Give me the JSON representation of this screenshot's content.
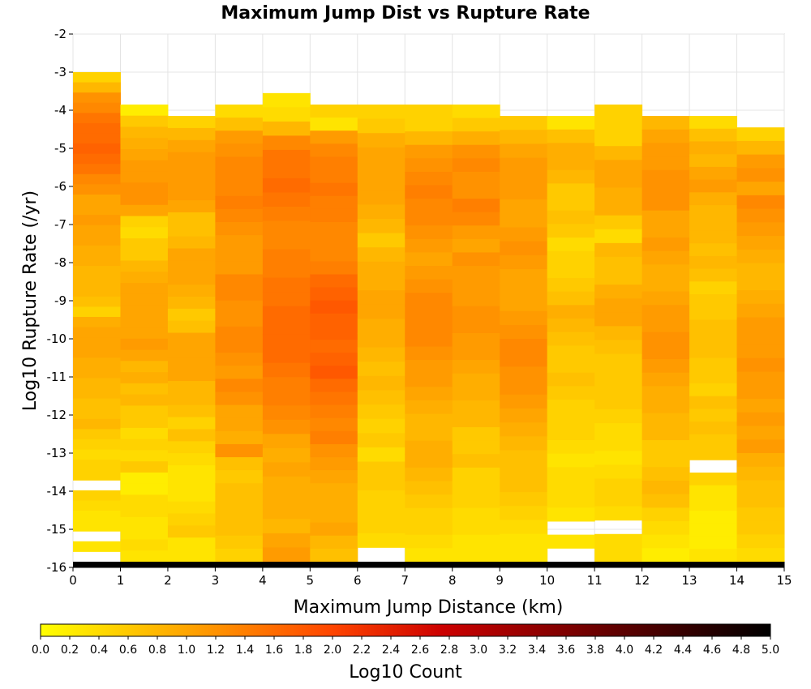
{
  "chart_data": {
    "type": "heatmap",
    "title": "Maximum Jump Dist vs Rupture Rate",
    "xlabel": "Maximum Jump Distance (km)",
    "ylabel": "Log10 Rupture Rate (/yr)",
    "colorbar_label": "Log10 Count",
    "xlim": [
      0,
      15
    ],
    "ylim": [
      -16,
      -2
    ],
    "x_ticks": [
      "0",
      "1",
      "2",
      "3",
      "4",
      "5",
      "6",
      "7",
      "8",
      "9",
      "10",
      "11",
      "12",
      "13",
      "14",
      "15"
    ],
    "y_ticks": [
      "-2",
      "-3",
      "-4",
      "-5",
      "-6",
      "-7",
      "-8",
      "-9",
      "-10",
      "-11",
      "-12",
      "-13",
      "-14",
      "-15",
      "-16"
    ],
    "color_range": [
      0.0,
      5.0
    ],
    "colorbar_ticks": [
      "0.0",
      "0.2",
      "0.4",
      "0.6",
      "0.8",
      "1.0",
      "1.2",
      "1.4",
      "1.6",
      "1.8",
      "2.0",
      "2.2",
      "2.4",
      "2.6",
      "2.8",
      "3.0",
      "3.2",
      "3.4",
      "3.6",
      "3.8",
      "4.0",
      "4.2",
      "4.4",
      "4.6",
      "4.8",
      "5.0"
    ],
    "colormap": [
      "#ffff00",
      "#ffa500",
      "#ff4500",
      "#cc0000",
      "#000000"
    ],
    "grid": true,
    "x_bins": [
      0,
      1,
      2,
      3,
      4,
      5,
      6,
      7,
      8,
      9,
      10,
      11,
      12,
      13,
      14
    ],
    "bin_width_x": 1,
    "bin_height_y": 0.285,
    "columns": [
      {
        "x": 0,
        "top": -3.0,
        "cells": [
          0.5,
          0.8,
          1.2,
          1.3,
          1.5,
          1.6,
          1.6,
          1.7,
          1.6,
          1.5,
          1.3,
          1.2,
          1.0,
          1.0,
          1.1,
          1.0,
          1.0,
          0.9,
          0.9,
          0.8,
          0.8,
          0.8,
          0.7,
          0.5,
          0.9,
          1.0,
          1.0,
          1.0,
          0.9,
          0.9,
          0.8,
          0.8,
          0.7,
          0.7,
          0.8,
          0.6,
          0.5,
          0.4,
          0.5,
          0.5,
          null,
          0.5,
          0.4,
          0.3,
          0.3,
          null,
          0.3,
          null,
          5.0
        ]
      },
      {
        "x": 1,
        "top": -3.85,
        "cells": [
          0.2,
          0.6,
          0.8,
          0.9,
          1.0,
          1.1,
          1.1,
          1.2,
          1.2,
          1.0,
          0.5,
          0.4,
          0.6,
          0.6,
          0.8,
          0.9,
          1.0,
          1.0,
          1.0,
          1.0,
          1.0,
          1.1,
          1.0,
          0.8,
          0.9,
          0.7,
          0.8,
          0.6,
          0.6,
          0.4,
          0.5,
          0.4,
          0.6,
          0.2,
          0.2,
          0.4,
          0.4,
          0.3,
          0.3,
          0.4,
          0.3,
          5.0
        ]
      },
      {
        "x": 2,
        "top": -4.15,
        "cells": [
          0.5,
          0.8,
          1.0,
          1.1,
          1.1,
          1.1,
          1.1,
          1.0,
          0.7,
          0.7,
          0.8,
          1.0,
          1.0,
          1.0,
          0.9,
          0.8,
          0.6,
          0.7,
          1.0,
          1.0,
          1.0,
          1.0,
          0.8,
          0.8,
          0.7,
          0.5,
          0.7,
          0.5,
          0.4,
          0.3,
          0.3,
          0.3,
          0.4,
          0.5,
          0.6,
          0.3,
          0.3,
          5.0
        ]
      },
      {
        "x": 3,
        "top": -3.85,
        "cells": [
          0.4,
          0.7,
          1.1,
          1.2,
          1.3,
          1.3,
          1.3,
          1.4,
          1.3,
          1.2,
          1.1,
          1.1,
          1.1,
          1.3,
          1.3,
          1.2,
          1.2,
          1.3,
          1.3,
          1.2,
          1.1,
          1.3,
          1.2,
          1.0,
          1.0,
          0.9,
          1.2,
          0.7,
          0.6,
          0.7,
          0.7,
          0.7,
          0.7,
          0.6,
          0.5,
          5.0
        ]
      },
      {
        "x": 4,
        "top": -3.55,
        "cells": [
          0.3,
          0.4,
          0.8,
          1.3,
          1.5,
          1.5,
          1.6,
          1.5,
          1.4,
          1.3,
          1.3,
          1.4,
          1.4,
          1.5,
          1.5,
          1.6,
          1.6,
          1.6,
          1.6,
          1.5,
          1.4,
          1.4,
          1.3,
          1.2,
          1.0,
          0.9,
          1.0,
          0.9,
          0.9,
          0.9,
          0.8,
          1.0,
          1.1,
          5.0
        ]
      },
      {
        "x": 5,
        "top": -3.85,
        "cells": [
          0.5,
          0.3,
          1.1,
          1.3,
          1.4,
          1.4,
          1.5,
          1.4,
          1.4,
          1.3,
          1.3,
          1.3,
          1.4,
          1.6,
          1.7,
          1.8,
          1.7,
          1.7,
          1.6,
          1.7,
          1.8,
          1.6,
          1.5,
          1.4,
          1.3,
          1.4,
          1.2,
          1.1,
          1.0,
          0.9,
          0.9,
          0.9,
          1.0,
          0.8,
          0.7,
          5.0
        ]
      },
      {
        "x": 6,
        "top": -3.85,
        "cells": [
          0.5,
          0.6,
          0.9,
          1.0,
          1.0,
          1.0,
          1.0,
          0.9,
          0.8,
          0.6,
          0.8,
          0.9,
          0.9,
          1.0,
          1.0,
          0.9,
          0.9,
          0.8,
          0.7,
          0.8,
          0.7,
          0.6,
          0.5,
          0.6,
          0.4,
          0.6,
          0.6,
          0.5,
          0.5,
          0.5,
          0.4,
          null,
          5.0
        ]
      },
      {
        "x": 7,
        "top": -3.85,
        "cells": [
          0.5,
          0.5,
          0.8,
          1.1,
          1.2,
          1.3,
          1.4,
          1.3,
          1.3,
          1.2,
          1.1,
          1.0,
          1.1,
          1.2,
          1.3,
          1.3,
          1.3,
          1.3,
          1.2,
          1.1,
          1.1,
          1.0,
          0.9,
          0.8,
          0.8,
          0.9,
          0.9,
          0.8,
          0.7,
          0.6,
          0.5,
          0.5,
          0.4,
          0.3,
          5.0
        ]
      },
      {
        "x": 8,
        "top": -3.85,
        "cells": [
          0.4,
          0.6,
          0.9,
          1.2,
          1.3,
          1.2,
          1.2,
          1.4,
          1.3,
          1.1,
          1.0,
          1.2,
          1.1,
          1.1,
          1.1,
          1.2,
          1.2,
          1.1,
          1.1,
          1.0,
          0.9,
          0.9,
          0.8,
          0.8,
          0.6,
          0.6,
          0.7,
          0.5,
          0.5,
          0.5,
          0.4,
          0.4,
          0.3,
          0.3,
          5.0
        ]
      },
      {
        "x": 9,
        "top": -4.15,
        "cells": [
          0.6,
          0.8,
          1.0,
          1.1,
          1.1,
          1.1,
          1.0,
          1.0,
          1.1,
          1.2,
          1.1,
          1.0,
          1.0,
          1.0,
          1.1,
          1.2,
          1.3,
          1.3,
          1.2,
          1.2,
          1.1,
          1.0,
          0.9,
          0.8,
          0.7,
          0.7,
          0.7,
          0.6,
          0.5,
          0.4,
          0.3,
          0.3,
          5.0
        ]
      },
      {
        "x": 10,
        "top": -4.15,
        "cells": [
          0.3,
          0.7,
          0.9,
          0.9,
          0.8,
          0.6,
          0.6,
          0.7,
          0.6,
          0.4,
          0.5,
          0.5,
          0.6,
          0.7,
          0.9,
          0.8,
          0.7,
          0.6,
          0.6,
          0.7,
          0.6,
          0.5,
          0.5,
          0.5,
          0.4,
          0.3,
          0.4,
          0.4,
          0.4,
          0.3,
          null,
          0.3,
          null,
          5.0
        ]
      },
      {
        "x": 11,
        "top": -3.85,
        "cells": [
          0.5,
          0.5,
          0.5,
          0.8,
          1.0,
          1.0,
          0.9,
          0.9,
          0.6,
          0.4,
          0.8,
          0.7,
          0.7,
          0.9,
          1.0,
          1.0,
          0.8,
          0.7,
          0.6,
          0.6,
          0.6,
          0.6,
          0.5,
          0.4,
          0.4,
          0.3,
          0.4,
          0.5,
          0.5,
          0.4,
          null,
          0.4,
          0.4,
          5.0
        ]
      },
      {
        "x": 12,
        "top": -4.15,
        "cells": [
          0.8,
          1.0,
          1.1,
          1.1,
          1.2,
          1.2,
          1.2,
          1.0,
          1.0,
          1.1,
          1.0,
          0.9,
          0.9,
          1.0,
          1.1,
          1.1,
          1.2,
          1.2,
          1.1,
          1.0,
          0.9,
          0.9,
          0.8,
          0.8,
          0.6,
          0.6,
          0.7,
          0.8,
          0.7,
          0.5,
          0.4,
          0.3,
          0.2,
          5.0
        ]
      },
      {
        "x": 13,
        "top": -4.15,
        "cells": [
          0.4,
          0.7,
          0.9,
          0.8,
          1.0,
          1.1,
          0.9,
          0.8,
          0.8,
          0.8,
          0.7,
          0.8,
          0.7,
          0.5,
          0.6,
          0.6,
          0.7,
          0.7,
          0.7,
          0.6,
          0.6,
          0.5,
          0.7,
          0.6,
          0.7,
          0.6,
          0.6,
          null,
          0.5,
          0.3,
          0.3,
          0.2,
          0.2,
          0.2,
          0.3,
          5.0
        ]
      },
      {
        "x": 14,
        "top": -4.45,
        "cells": [
          0.5,
          0.8,
          1.1,
          1.2,
          1.0,
          1.3,
          1.2,
          1.1,
          1.0,
          0.9,
          0.8,
          0.8,
          0.9,
          1.0,
          1.1,
          1.1,
          1.1,
          1.2,
          1.1,
          1.1,
          1.0,
          1.1,
          1.0,
          1.1,
          0.9,
          0.8,
          0.7,
          0.7,
          0.6,
          0.6,
          0.5,
          0.4,
          5.0
        ]
      }
    ]
  }
}
